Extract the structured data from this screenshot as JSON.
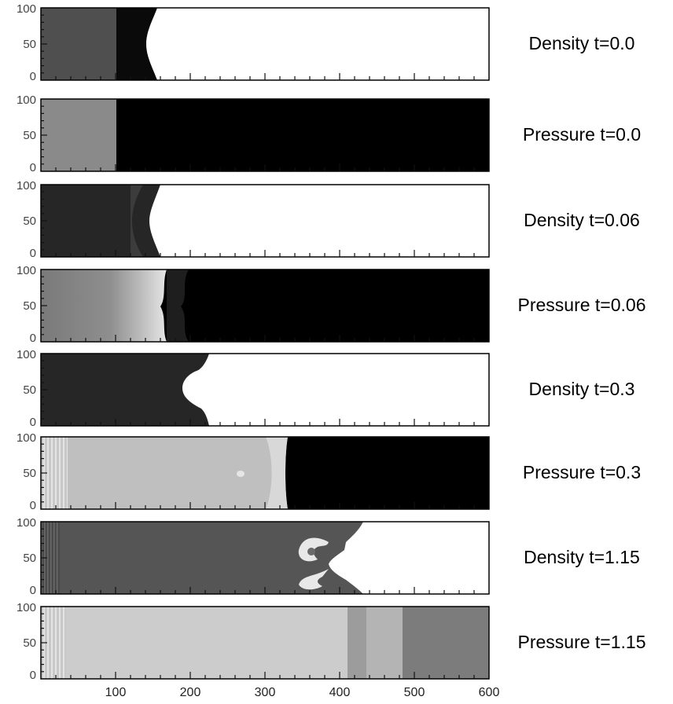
{
  "chart_data": {
    "type": "heatmap",
    "x_ticks": [
      "100",
      "200",
      "300",
      "400",
      "500",
      "600"
    ],
    "y_ticks": [
      "0",
      "50",
      "100"
    ],
    "xlim": [
      0,
      600
    ],
    "ylim": [
      0,
      100
    ],
    "grayscale": "black = low value, white = high value",
    "panels": [
      {
        "label": "Density t=0.0",
        "field": "density",
        "t": 0.0
      },
      {
        "label": "Pressure t=0.0",
        "field": "pressure",
        "t": 0.0
      },
      {
        "label": "Density t=0.06",
        "field": "density",
        "t": 0.06
      },
      {
        "label": "Pressure t=0.06",
        "field": "pressure",
        "t": 0.06
      },
      {
        "label": "Density t=0.3",
        "field": "density",
        "t": 0.3
      },
      {
        "label": "Pressure t=0.3",
        "field": "pressure",
        "t": 0.3
      },
      {
        "label": "Density t=1.15",
        "field": "density",
        "t": 1.15
      },
      {
        "label": "Pressure t=1.15",
        "field": "pressure",
        "t": 1.15
      }
    ]
  }
}
